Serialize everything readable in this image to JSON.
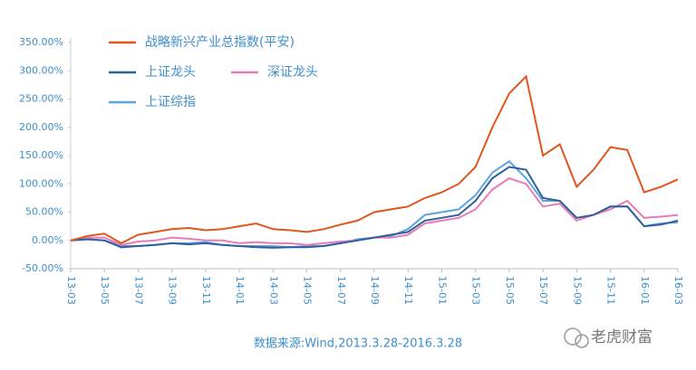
{
  "chart_data": {
    "type": "line",
    "source": "数据来源:Wind,2013.3.28-2016.3.28",
    "watermark": "老虎财富",
    "x": [
      "13-03",
      "13-04",
      "13-05",
      "13-06",
      "13-07",
      "13-08",
      "13-09",
      "13-10",
      "13-11",
      "13-12",
      "14-01",
      "14-02",
      "14-03",
      "14-04",
      "14-05",
      "14-06",
      "14-07",
      "14-08",
      "14-09",
      "14-10",
      "14-11",
      "14-12",
      "15-01",
      "15-02",
      "15-03",
      "15-04",
      "15-05",
      "15-06",
      "15-07",
      "15-08",
      "15-09",
      "15-10",
      "15-11",
      "15-12",
      "16-01",
      "16-02",
      "16-03"
    ],
    "xticks": [
      "13-03",
      "13-05",
      "13-07",
      "13-09",
      "13-11",
      "14-01",
      "14-03",
      "14-05",
      "14-07",
      "14-09",
      "14-11",
      "15-01",
      "15-03",
      "15-05",
      "15-07",
      "15-09",
      "15-11",
      "16-01",
      "16-03"
    ],
    "ylim": [
      -50,
      350
    ],
    "yticks": [
      {
        "value": -50,
        "label": "-50.00%"
      },
      {
        "value": 0,
        "label": "0.00%"
      },
      {
        "value": 50,
        "label": "50.00%"
      },
      {
        "value": 100,
        "label": "100.00%"
      },
      {
        "value": 150,
        "label": "150.00%"
      },
      {
        "value": 200,
        "label": "200.00%"
      },
      {
        "value": 250,
        "label": "250.00%"
      },
      {
        "value": 300,
        "label": "300.00%"
      },
      {
        "value": 350,
        "label": "350.00%"
      }
    ],
    "grid": false,
    "series": [
      {
        "name": "战略新兴产业总指数(平安)",
        "color": "#e0561e",
        "values": [
          0,
          8,
          12,
          -5,
          10,
          15,
          20,
          22,
          18,
          20,
          25,
          30,
          20,
          18,
          15,
          20,
          28,
          35,
          50,
          55,
          60,
          75,
          85,
          100,
          130,
          200,
          260,
          290,
          150,
          170,
          95,
          125,
          165,
          160,
          85,
          95,
          108
        ]
      },
      {
        "name": "上证龙头",
        "color": "#2f5f9e",
        "values": [
          0,
          2,
          0,
          -12,
          -10,
          -8,
          -5,
          -7,
          -5,
          -8,
          -10,
          -12,
          -13,
          -12,
          -12,
          -10,
          -5,
          0,
          5,
          10,
          15,
          35,
          40,
          45,
          70,
          110,
          130,
          125,
          75,
          70,
          40,
          45,
          60,
          60,
          25,
          28,
          35
        ]
      },
      {
        "name": "深证龙头",
        "color": "#e87bb4",
        "values": [
          0,
          5,
          5,
          -8,
          -2,
          0,
          5,
          3,
          0,
          0,
          -5,
          -3,
          -5,
          -5,
          -8,
          -5,
          -2,
          0,
          5,
          5,
          10,
          30,
          35,
          40,
          55,
          90,
          110,
          100,
          60,
          65,
          35,
          45,
          55,
          70,
          40,
          42,
          45
        ]
      },
      {
        "name": "上证综指",
        "color": "#5aa5dc",
        "values": [
          0,
          2,
          0,
          -10,
          -10,
          -8,
          -5,
          -5,
          -3,
          -8,
          -10,
          -10,
          -10,
          -12,
          -10,
          -10,
          -5,
          2,
          5,
          8,
          20,
          45,
          50,
          55,
          80,
          120,
          140,
          110,
          70,
          70,
          40,
          45,
          60,
          60,
          25,
          30,
          32
        ]
      }
    ]
  }
}
